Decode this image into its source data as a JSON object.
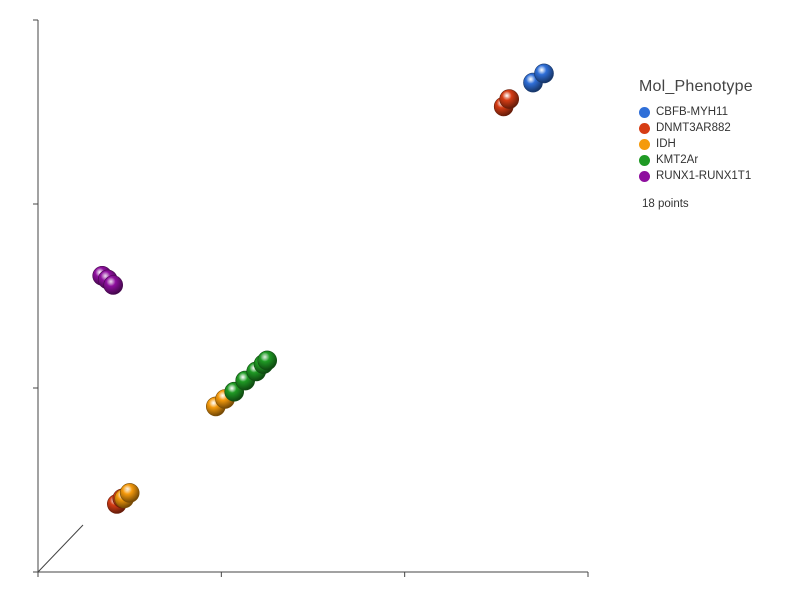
{
  "chart_data": {
    "type": "scatter",
    "view": "3d",
    "title": "",
    "xlabel": "",
    "ylabel": "",
    "zlabel": "",
    "legend": {
      "title": "Mol_Phenotype",
      "placement": "right",
      "items": [
        {
          "label": "CBFB-MYH11",
          "color": "#2f6fd8"
        },
        {
          "label": "DNMT3AR882",
          "color": "#d63c14"
        },
        {
          "label": "IDH",
          "color": "#f59a0c"
        },
        {
          "label": "KMT2Ar",
          "color": "#1f9a24"
        },
        {
          "label": "RUNX1-RUNX1T1",
          "color": "#8e0f9e"
        }
      ]
    },
    "point_count_label": "18 points",
    "series": [
      {
        "group": "CBFB-MYH11",
        "points": [
          [
            2.76,
            2.71
          ],
          [
            2.7,
            2.66
          ]
        ]
      },
      {
        "group": "DNMT3AR882",
        "points": [
          [
            2.57,
            2.57
          ],
          [
            2.54,
            2.53
          ],
          [
            0.46,
            0.4
          ],
          [
            0.43,
            0.37
          ]
        ]
      },
      {
        "group": "IDH",
        "points": [
          [
            0.5,
            0.43
          ],
          [
            0.47,
            0.4
          ],
          [
            0.97,
            0.9
          ],
          [
            1.02,
            0.94
          ]
        ]
      },
      {
        "group": "KMT2Ar",
        "points": [
          [
            1.07,
            0.98
          ],
          [
            1.13,
            1.04
          ],
          [
            1.19,
            1.09
          ],
          [
            1.23,
            1.13
          ],
          [
            1.25,
            1.15
          ]
        ]
      },
      {
        "group": "RUNX1-RUNX1T1",
        "points": [
          [
            0.35,
            1.61
          ],
          [
            0.38,
            1.59
          ],
          [
            0.41,
            1.56
          ]
        ]
      }
    ],
    "xlim": [
      0,
      3
    ],
    "ylim": [
      0,
      3
    ],
    "grid": false
  }
}
